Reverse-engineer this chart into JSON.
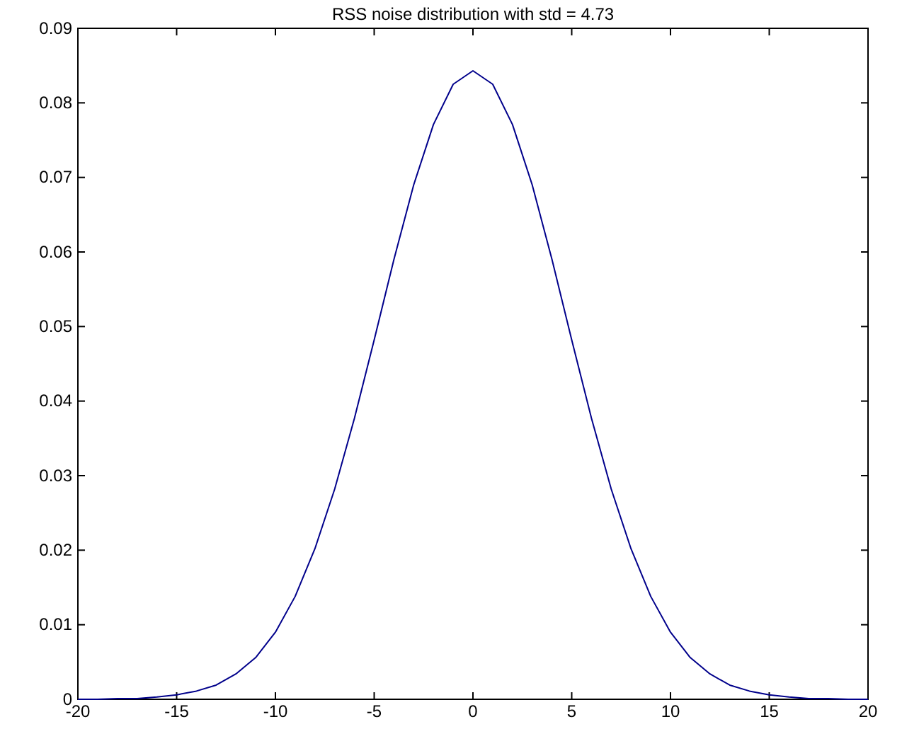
{
  "chart_data": {
    "type": "line",
    "title": "RSS noise distribution with std = 4.73",
    "x": [
      -20,
      -19,
      -18,
      -17,
      -16,
      -15,
      -14,
      -13,
      -12,
      -11,
      -10,
      -9,
      -8,
      -7,
      -6,
      -5,
      -4,
      -3,
      -2,
      -1,
      0,
      1,
      2,
      3,
      4,
      5,
      6,
      7,
      8,
      9,
      10,
      11,
      12,
      13,
      14,
      15,
      16,
      17,
      18,
      19,
      20
    ],
    "series": [
      {
        "color": "#00008b",
        "values": [
          0,
          0,
          0.0001,
          0.0001,
          0.0003,
          0.0006,
          0.0011,
          0.0019,
          0.0034,
          0.0056,
          0.009,
          0.0138,
          0.0202,
          0.0282,
          0.0377,
          0.0482,
          0.059,
          0.069,
          0.0771,
          0.0825,
          0.0843,
          0.0825,
          0.0771,
          0.069,
          0.059,
          0.0482,
          0.0377,
          0.0282,
          0.0202,
          0.0138,
          0.009,
          0.0056,
          0.0034,
          0.0019,
          0.0011,
          0.0006,
          0.0003,
          0.0001,
          0.0001,
          0,
          0
        ]
      }
    ],
    "xlim": [
      -20,
      20
    ],
    "xticks": [
      -20,
      -15,
      -10,
      -5,
      0,
      5,
      10,
      15,
      20
    ],
    "ylim": [
      0,
      0.09
    ],
    "yticks": [
      0,
      0.01,
      0.02,
      0.03,
      0.04,
      0.05,
      0.06,
      0.07,
      0.08,
      0.09
    ],
    "grid": false,
    "marker": "none",
    "line_style": "solid"
  }
}
